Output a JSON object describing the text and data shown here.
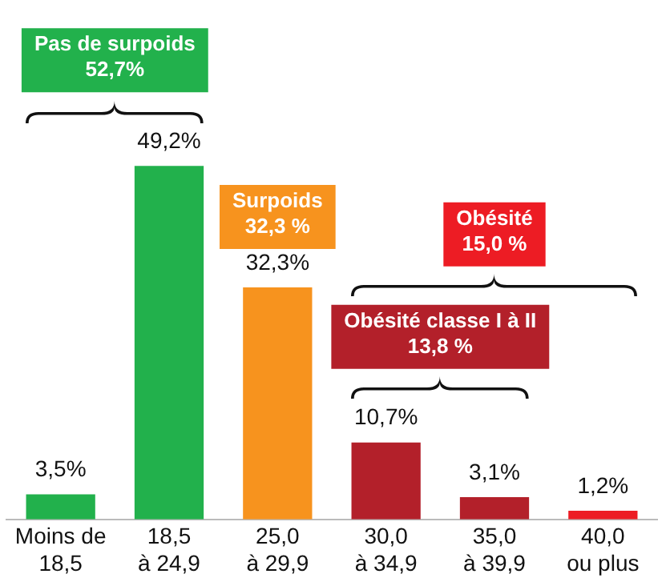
{
  "chart_data": {
    "type": "bar",
    "categories": [
      "Moins de 18,5",
      "18,5 à 24,9",
      "25,0 à 29,9",
      "30,0 à 34,9",
      "35,0 à 39,9",
      "40,0 ou plus"
    ],
    "values": [
      3.5,
      49.2,
      32.3,
      10.7,
      3.1,
      1.2
    ],
    "colors": [
      "#22b14c",
      "#22b14c",
      "#f7931e",
      "#b3202a",
      "#b3202a",
      "#ed1c24"
    ],
    "value_labels": [
      "3,5%",
      "49,2%",
      "32,3%",
      "10,7%",
      "3,1%",
      "1,2%"
    ],
    "annotations": [
      "Pas de surpoids\n52,7%",
      "Surpoids\n32,3 %",
      "Obésité\n15,0 %",
      "Obésité classe I à II\n13,8 %"
    ],
    "grid": false,
    "legend": false
  }
}
